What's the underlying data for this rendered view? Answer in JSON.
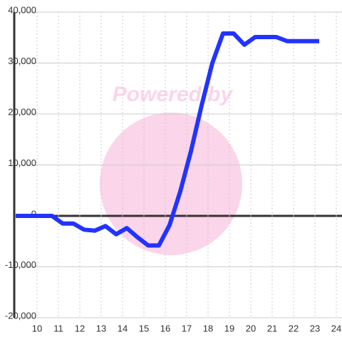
{
  "chart_data": {
    "type": "line",
    "watermark": "Powered by",
    "x": [
      9,
      10.7,
      11.2,
      11.7,
      12.2,
      12.7,
      13.2,
      13.7,
      14.2,
      14.7,
      15.2,
      15.7,
      16.2,
      16.7,
      17.2,
      17.7,
      18.2,
      18.7,
      19.2,
      19.7,
      20.2,
      20.7,
      21.2,
      21.7,
      22.2,
      22.7,
      23.2
    ],
    "series": [
      {
        "color": "#2233ff",
        "values": [
          0,
          0,
          -1500,
          -1500,
          -2700,
          -2900,
          -2000,
          -3600,
          -2400,
          -4200,
          -5800,
          -5800,
          -1800,
          4800,
          12700,
          21700,
          30000,
          35800,
          35800,
          33600,
          35100,
          35100,
          35100,
          34300,
          34300,
          34300,
          34300
        ]
      }
    ],
    "xlim": [
      9,
      24.3
    ],
    "xticks": [
      10,
      11,
      12,
      13,
      14,
      15,
      16,
      17,
      18,
      19,
      20,
      21,
      22,
      23,
      24
    ],
    "ylim": [
      -20000,
      40000
    ],
    "yticks": [
      {
        "value": -20000,
        "label": "-20,000"
      },
      {
        "value": -10000,
        "label": "-10,000"
      },
      0,
      {
        "value": 10000,
        "label": "10,000"
      },
      {
        "value": 20000,
        "label": "20,000"
      },
      {
        "value": 30000,
        "label": "30,000"
      },
      {
        "value": 40000,
        "label": "40,000"
      }
    ],
    "grid": true
  }
}
